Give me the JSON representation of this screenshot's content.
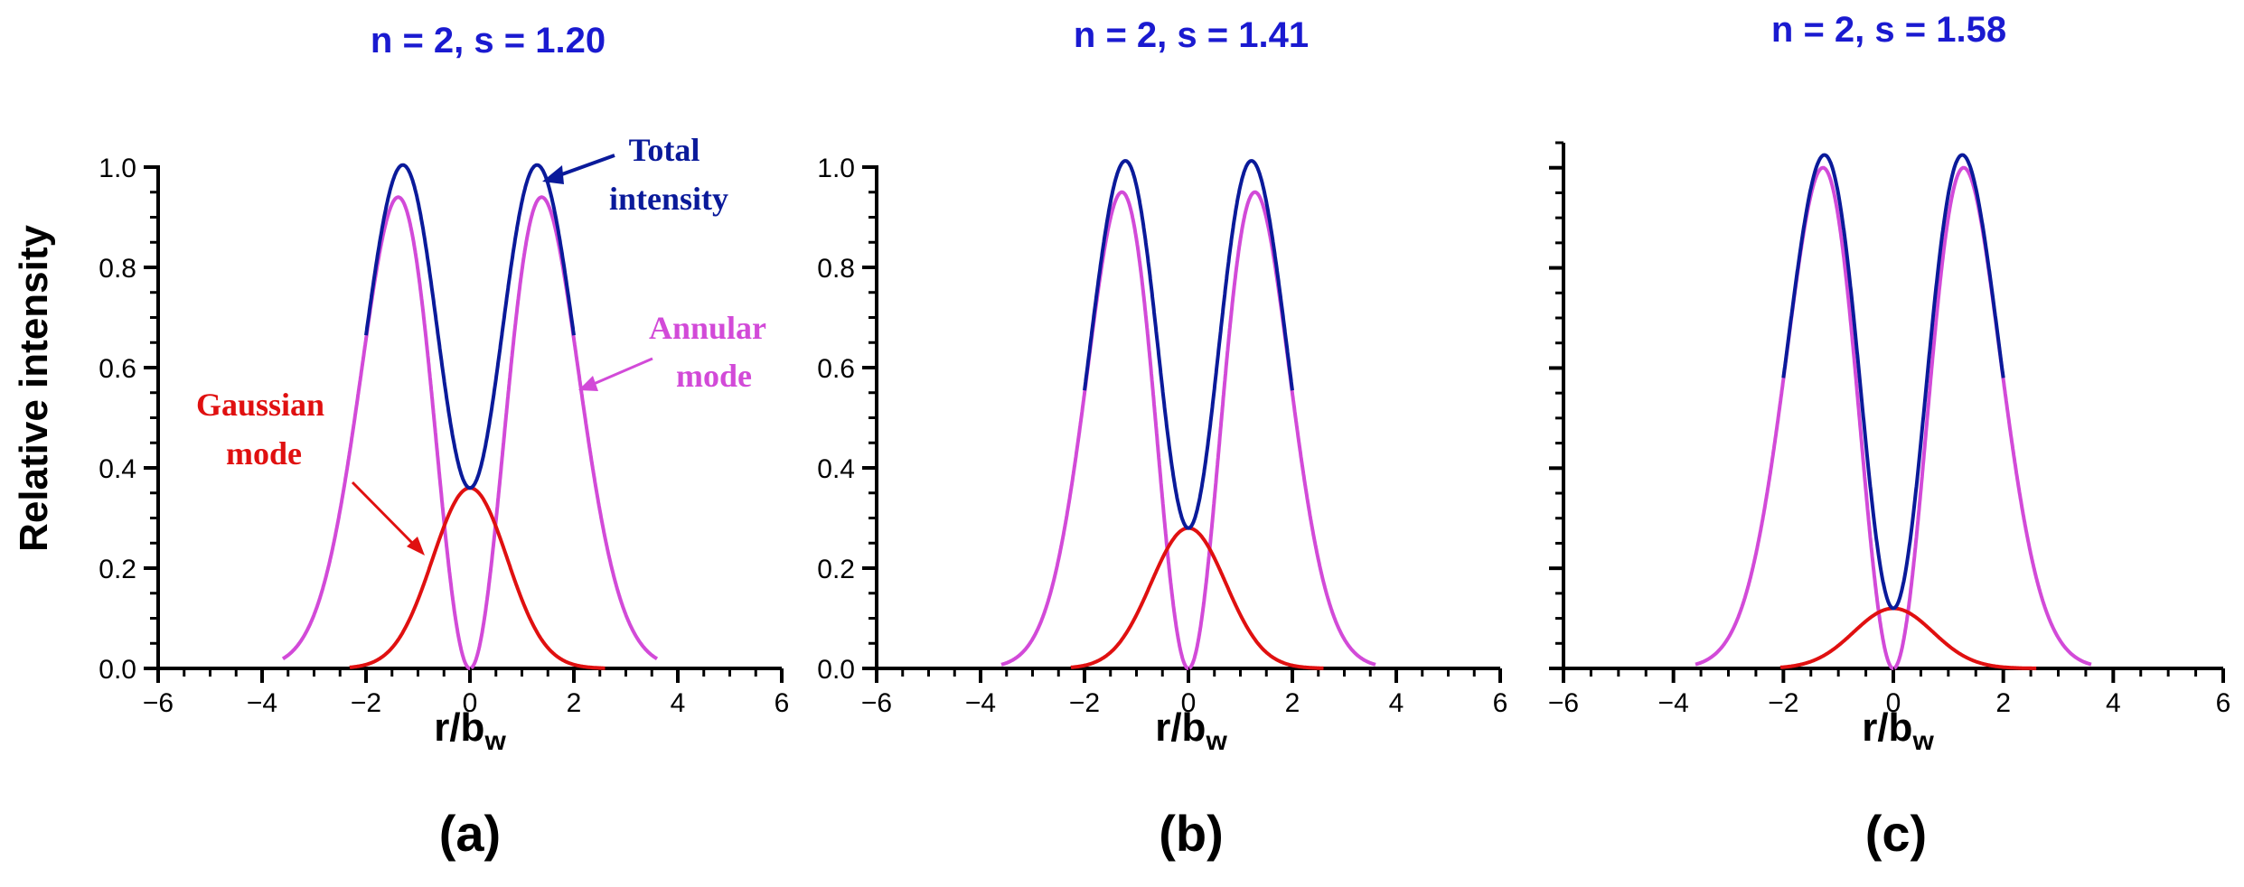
{
  "chart_data": {
    "ylabel": "Relative intensity",
    "xlabel_main": "r/b",
    "xlabel_sub": "w",
    "colors": {
      "title": "#1a1ad0",
      "total": "#0a1a9a",
      "annular": "#d24ad8",
      "gaussian": "#e01010",
      "axis": "#000000"
    },
    "legend": {
      "total": "Total intensity",
      "total_line1": "Total",
      "total_line2": "intensity",
      "annular_line1": "Annular",
      "annular_line2": "mode",
      "gaussian_line1": "Gaussian",
      "gaussian_line2": "mode"
    },
    "panels": [
      {
        "type": "line",
        "id": "a",
        "title": "n = 2, s = 1.20",
        "label": "(a)",
        "xlim": [
          -6,
          6
        ],
        "ylim": [
          0,
          1.0
        ],
        "xticks": [
          -6,
          -4,
          -2,
          0,
          2,
          4,
          6
        ],
        "yticks": [
          0.0,
          0.2,
          0.4,
          0.6,
          0.8,
          1.0
        ],
        "ytick_labels": [
          "0.0",
          "0.2",
          "0.4",
          "0.6",
          "0.8",
          "1.0"
        ],
        "show_ytick_labels": true,
        "series": [
          {
            "name": "Annular mode",
            "kind": "annular",
            "amplitude": 0.94,
            "peak_r": 1.38
          },
          {
            "name": "Gaussian mode",
            "kind": "gaussian",
            "amplitude": 0.36,
            "peak_r": 0.0
          },
          {
            "name": "Total intensity",
            "kind": "total",
            "peak_value": 1.0,
            "center_value": 0.36
          }
        ],
        "annotations": true
      },
      {
        "type": "line",
        "id": "b",
        "title": "n = 2, s = 1.41",
        "label": "(b)",
        "xlim": [
          -6,
          6
        ],
        "ylim": [
          0,
          1.0
        ],
        "xticks": [
          -6,
          -4,
          -2,
          0,
          2,
          4,
          6
        ],
        "yticks": [
          0.0,
          0.2,
          0.4,
          0.6,
          0.8,
          1.0
        ],
        "ytick_labels": [
          "0.0",
          "0.2",
          "0.4",
          "0.6",
          "0.8",
          "1.0"
        ],
        "show_ytick_labels": true,
        "series": [
          {
            "name": "Annular mode",
            "kind": "annular",
            "amplitude": 0.95,
            "peak_r": 1.28
          },
          {
            "name": "Gaussian mode",
            "kind": "gaussian",
            "amplitude": 0.28,
            "peak_r": 0.0
          },
          {
            "name": "Total intensity",
            "kind": "total",
            "peak_value": 1.0,
            "center_value": 0.28
          }
        ],
        "annotations": false
      },
      {
        "type": "line",
        "id": "c",
        "title": "n = 2, s = 1.58",
        "label": "(c)",
        "xlim": [
          -6,
          6
        ],
        "ylim": [
          0,
          1.05
        ],
        "xticks": [
          -6,
          -4,
          -2,
          0,
          2,
          4,
          6
        ],
        "yticks": [
          0.0,
          0.2,
          0.4,
          0.6,
          0.8,
          1.0
        ],
        "ytick_labels": [],
        "show_ytick_labels": false,
        "series": [
          {
            "name": "Annular mode",
            "kind": "annular",
            "amplitude": 1.0,
            "peak_r": 1.28
          },
          {
            "name": "Gaussian mode",
            "kind": "gaussian",
            "amplitude": 0.12,
            "peak_r": 0.0
          },
          {
            "name": "Total intensity",
            "kind": "total",
            "peak_value": 1.0,
            "center_value": 0.12
          }
        ],
        "annotations": false
      }
    ]
  }
}
